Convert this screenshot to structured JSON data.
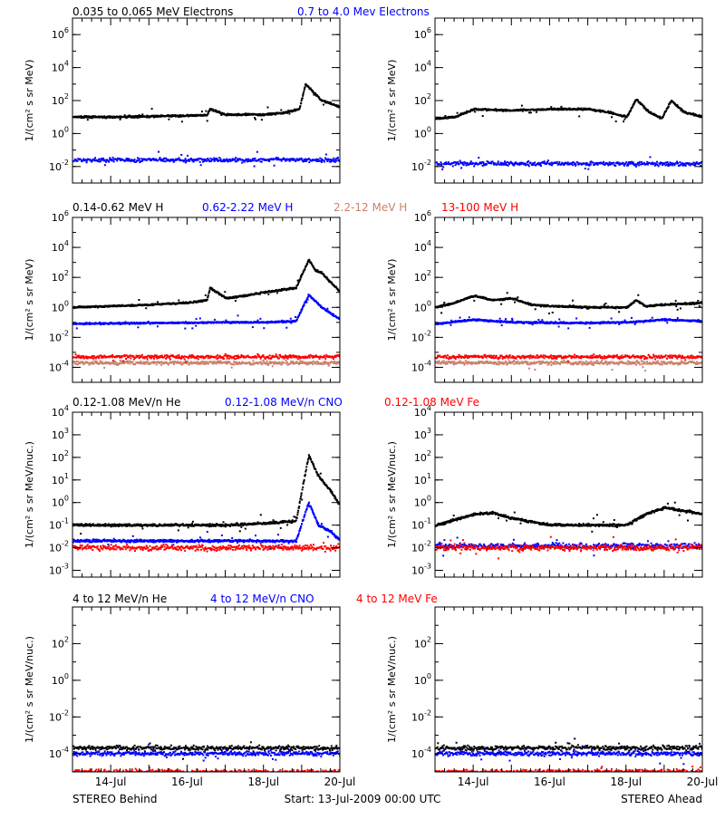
{
  "colors": {
    "black": "#000000",
    "blue": "#0000ff",
    "red": "#ff0000",
    "brown": "#c8826e"
  },
  "footer": {
    "left": "STEREO Behind",
    "center": "Start: 13-Jul-2009 00:00 UTC",
    "right": "STEREO Ahead"
  },
  "x_ticks": [
    "14-Jul",
    "16-Jul",
    "18-Jul",
    "20-Jul"
  ],
  "rows": [
    {
      "legend": [
        {
          "text": "0.035 to 0.065 MeV Electrons",
          "color": "#000000"
        },
        {
          "text": "0.7 to 4.0 Mev Electrons",
          "color": "#0000ff"
        }
      ],
      "ylabel": "1/(cm² s sr MeV)",
      "ylim": [
        0.001,
        10000000.0
      ],
      "yticks": [
        {
          "m": "10",
          "e": "6"
        },
        {
          "m": "10",
          "e": "4"
        },
        {
          "m": "10",
          "e": "2"
        },
        {
          "m": "10",
          "e": "0"
        },
        {
          "m": "10",
          "e": "-2"
        }
      ]
    },
    {
      "legend": [
        {
          "text": "0.14-0.62 MeV H",
          "color": "#000000"
        },
        {
          "text": "0.62-2.22 MeV H",
          "color": "#0000ff"
        },
        {
          "text": "2.2-12 MeV H",
          "color": "#c8826e"
        },
        {
          "text": "13-100 MeV H",
          "color": "#ff0000"
        }
      ],
      "ylabel": "1/(cm² s sr MeV)",
      "ylim": [
        1e-05,
        1000000.0
      ],
      "yticks": [
        {
          "m": "10",
          "e": "6"
        },
        {
          "m": "10",
          "e": "4"
        },
        {
          "m": "10",
          "e": "2"
        },
        {
          "m": "10",
          "e": "0"
        },
        {
          "m": "10",
          "e": "-2"
        },
        {
          "m": "10",
          "e": "-4"
        }
      ]
    },
    {
      "legend": [
        {
          "text": "0.12-1.08 MeV/n He",
          "color": "#000000"
        },
        {
          "text": "0.12-1.08 MeV/n CNO",
          "color": "#0000ff"
        },
        {
          "text": "0.12-1.08 MeV Fe",
          "color": "#ff0000"
        }
      ],
      "ylabel": "1/(cm² s sr MeV/nuc.)",
      "ylim": [
        0.0005,
        10000.0
      ],
      "yticks": [
        {
          "m": "10",
          "e": "4"
        },
        {
          "m": "10",
          "e": "3"
        },
        {
          "m": "10",
          "e": "2"
        },
        {
          "m": "10",
          "e": "1"
        },
        {
          "m": "10",
          "e": "0"
        },
        {
          "m": "10",
          "e": "-1"
        },
        {
          "m": "10",
          "e": "-2"
        },
        {
          "m": "10",
          "e": "-3"
        }
      ]
    },
    {
      "legend": [
        {
          "text": "4 to 12 MeV/n He",
          "color": "#000000"
        },
        {
          "text": "4 to 12 MeV/n CNO",
          "color": "#0000ff"
        },
        {
          "text": "4 to 12 MeV Fe",
          "color": "#ff0000"
        }
      ],
      "ylabel": "1/(cm² s sr MeV/nuc.)",
      "ylim": [
        1e-05,
        10000.0
      ],
      "yticks": [
        {
          "m": "10",
          "e": "2"
        },
        {
          "m": "10",
          "e": "0"
        },
        {
          "m": "10",
          "e": "-2"
        },
        {
          "m": "10",
          "e": "-4"
        }
      ]
    }
  ],
  "chart_data": [
    {
      "type": "scatter",
      "panel": "STEREO Behind - electrons",
      "yscale": "log",
      "xlim": [
        "13-Jul-2009 00:00",
        "20-Jul-2009 00:00"
      ],
      "ylim": [
        0.001,
        10000000.0
      ],
      "series": [
        {
          "name": "0.035 to 0.065 MeV Electrons",
          "color": "#000000",
          "x": [
            "13-Jul 00:00",
            "14-Jul 00:00",
            "15-Jul 00:00",
            "16-Jul 00:00",
            "16-Jul 12:00",
            "16-Jul 14:00",
            "17-Jul 00:00",
            "18-Jul 00:00",
            "18-Jul 12:00",
            "18-Jul 22:00",
            "19-Jul 02:00",
            "19-Jul 06:00",
            "19-Jul 12:00",
            "20-Jul 00:00"
          ],
          "y": [
            10,
            10,
            11,
            12,
            13,
            30,
            14,
            14,
            18,
            30,
            1000,
            400,
            100,
            40
          ]
        },
        {
          "name": "0.7 to 4.0 Mev Electrons",
          "color": "#0000ff",
          "x": [
            "13-Jul 00:00",
            "20-Jul 00:00"
          ],
          "y": [
            0.025,
            0.025
          ]
        }
      ]
    },
    {
      "type": "scatter",
      "panel": "STEREO Ahead - electrons",
      "yscale": "log",
      "xlim": [
        "13-Jul-2009 00:00",
        "20-Jul-2009 00:00"
      ],
      "ylim": [
        0.001,
        10000000.0
      ],
      "series": [
        {
          "name": "0.035 to 0.065 MeV Electrons",
          "color": "#000000",
          "x": [
            "13-Jul 00:00",
            "13-Jul 12:00",
            "14-Jul 00:00",
            "15-Jul 00:00",
            "16-Jul 00:00",
            "17-Jul 00:00",
            "17-Jul 12:00",
            "18-Jul 00:00",
            "18-Jul 06:00",
            "18-Jul 14:00",
            "18-Jul 22:00",
            "19-Jul 04:00",
            "19-Jul 12:00",
            "20-Jul 00:00"
          ],
          "y": [
            8,
            10,
            30,
            25,
            30,
            30,
            20,
            10,
            120,
            20,
            8,
            100,
            20,
            10
          ]
        },
        {
          "name": "0.7 to 4.0 Mev Electrons",
          "color": "#0000ff",
          "x": [
            "13-Jul 00:00",
            "20-Jul 00:00"
          ],
          "y": [
            0.015,
            0.015
          ]
        }
      ]
    },
    {
      "type": "scatter",
      "panel": "STEREO Behind - protons",
      "yscale": "log",
      "xlim": [
        "13-Jul-2009 00:00",
        "20-Jul-2009 00:00"
      ],
      "ylim": [
        1e-05,
        1000000.0
      ],
      "series": [
        {
          "name": "0.14-0.62 MeV H",
          "color": "#000000",
          "x": [
            "13-Jul 00:00",
            "14-Jul 00:00",
            "15-Jul 00:00",
            "16-Jul 00:00",
            "16-Jul 12:00",
            "16-Jul 14:00",
            "17-Jul 00:00",
            "17-Jul 12:00",
            "18-Jul 00:00",
            "18-Jul 12:00",
            "18-Jul 20:00",
            "19-Jul 04:00",
            "19-Jul 08:00",
            "19-Jul 12:00",
            "20-Jul 00:00"
          ],
          "y": [
            1,
            1.2,
            1.5,
            2,
            3,
            20,
            4,
            6,
            10,
            15,
            20,
            1500,
            300,
            200,
            10
          ]
        },
        {
          "name": "0.62-2.22 MeV H",
          "color": "#0000ff",
          "x": [
            "13-Jul 00:00",
            "15-Jul 00:00",
            "17-Jul 00:00",
            "18-Jul 00:00",
            "18-Jul 20:00",
            "19-Jul 04:00",
            "19-Jul 12:00",
            "20-Jul 00:00"
          ],
          "y": [
            0.08,
            0.09,
            0.1,
            0.1,
            0.12,
            7,
            1,
            0.15
          ]
        },
        {
          "name": "2.2-12 MeV H",
          "color": "#c8826e",
          "x": [
            "13-Jul 00:00",
            "20-Jul 00:00"
          ],
          "y": [
            0.0002,
            0.0002
          ]
        },
        {
          "name": "13-100 MeV H",
          "color": "#ff0000",
          "x": [
            "13-Jul 00:00",
            "20-Jul 00:00"
          ],
          "y": [
            0.0005,
            0.0005
          ]
        }
      ]
    },
    {
      "type": "scatter",
      "panel": "STEREO Ahead - protons",
      "yscale": "log",
      "xlim": [
        "13-Jul-2009 00:00",
        "20-Jul-2009 00:00"
      ],
      "ylim": [
        1e-05,
        1000000.0
      ],
      "series": [
        {
          "name": "0.14-0.62 MeV H",
          "color": "#000000",
          "x": [
            "13-Jul 00:00",
            "13-Jul 12:00",
            "14-Jul 00:00",
            "14-Jul 12:00",
            "15-Jul 00:00",
            "15-Jul 12:00",
            "16-Jul 00:00",
            "17-Jul 00:00",
            "18-Jul 00:00",
            "18-Jul 06:00",
            "18-Jul 12:00",
            "19-Jul 00:00",
            "20-Jul 00:00"
          ],
          "y": [
            1,
            2,
            6,
            3,
            4,
            1.5,
            1.2,
            1,
            1,
            3,
            1.2,
            1.5,
            2
          ]
        },
        {
          "name": "0.62-2.22 MeV H",
          "color": "#0000ff",
          "x": [
            "13-Jul 00:00",
            "14-Jul 00:00",
            "15-Jul 00:00",
            "17-Jul 00:00",
            "18-Jul 00:00",
            "19-Jul 00:00",
            "20-Jul 00:00"
          ],
          "y": [
            0.08,
            0.15,
            0.1,
            0.09,
            0.1,
            0.15,
            0.12
          ]
        },
        {
          "name": "2.2-12 MeV H",
          "color": "#c8826e",
          "x": [
            "13-Jul 00:00",
            "20-Jul 00:00"
          ],
          "y": [
            0.0002,
            0.0002
          ]
        },
        {
          "name": "13-100 MeV H",
          "color": "#ff0000",
          "x": [
            "13-Jul 00:00",
            "20-Jul 00:00"
          ],
          "y": [
            0.0005,
            0.0005
          ]
        }
      ]
    },
    {
      "type": "scatter",
      "panel": "STEREO Behind - heavy ions low energy",
      "yscale": "log",
      "xlim": [
        "13-Jul-2009 00:00",
        "20-Jul-2009 00:00"
      ],
      "ylim": [
        0.0005,
        10000.0
      ],
      "series": [
        {
          "name": "0.12-1.08 MeV/n He",
          "color": "#000000",
          "x": [
            "13-Jul 00:00",
            "15-Jul 00:00",
            "17-Jul 00:00",
            "18-Jul 00:00",
            "18-Jul 20:00",
            "19-Jul 04:00",
            "19-Jul 10:00",
            "19-Jul 18:00",
            "20-Jul 00:00"
          ],
          "y": [
            0.1,
            0.1,
            0.1,
            0.12,
            0.15,
            120,
            15,
            3,
            0.7
          ]
        },
        {
          "name": "0.12-1.08 MeV/n CNO",
          "color": "#0000ff",
          "x": [
            "13-Jul 00:00",
            "18-Jul 20:00",
            "19-Jul 04:00",
            "19-Jul 10:00",
            "19-Jul 18:00",
            "20-Jul 00:00"
          ],
          "y": [
            0.02,
            0.02,
            1,
            0.1,
            0.05,
            0.02
          ]
        },
        {
          "name": "0.12-1.08 MeV Fe",
          "color": "#ff0000",
          "x": [
            "13-Jul 00:00",
            "20-Jul 00:00"
          ],
          "y": [
            0.01,
            0.01
          ]
        }
      ]
    },
    {
      "type": "scatter",
      "panel": "STEREO Ahead - heavy ions low energy",
      "yscale": "log",
      "xlim": [
        "13-Jul-2009 00:00",
        "20-Jul-2009 00:00"
      ],
      "ylim": [
        0.0005,
        10000.0
      ],
      "series": [
        {
          "name": "0.12-1.08 MeV/n He",
          "color": "#000000",
          "x": [
            "13-Jul 00:00",
            "14-Jul 00:00",
            "14-Jul 12:00",
            "15-Jul 00:00",
            "16-Jul 00:00",
            "17-Jul 00:00",
            "18-Jul 00:00",
            "18-Jul 12:00",
            "19-Jul 00:00",
            "20-Jul 00:00"
          ],
          "y": [
            0.1,
            0.3,
            0.35,
            0.2,
            0.1,
            0.1,
            0.1,
            0.3,
            0.6,
            0.3
          ]
        },
        {
          "name": "0.12-1.08 MeV/n CNO",
          "color": "#0000ff",
          "x": [
            "13-Jul 00:00",
            "20-Jul 00:00"
          ],
          "y": [
            0.012,
            0.012
          ]
        },
        {
          "name": "0.12-1.08 MeV Fe",
          "color": "#ff0000",
          "x": [
            "13-Jul 00:00",
            "20-Jul 00:00"
          ],
          "y": [
            0.01,
            0.01
          ]
        }
      ]
    },
    {
      "type": "scatter",
      "panel": "STEREO Behind - heavy ions high energy",
      "yscale": "log",
      "xlim": [
        "13-Jul-2009 00:00",
        "20-Jul-2009 00:00"
      ],
      "ylim": [
        1e-05,
        10000.0
      ],
      "series": [
        {
          "name": "4 to 12 MeV/n He",
          "color": "#000000",
          "x": [
            "13-Jul 00:00",
            "20-Jul 00:00"
          ],
          "y": [
            0.0002,
            0.0002
          ]
        },
        {
          "name": "4 to 12 MeV/n CNO",
          "color": "#0000ff",
          "x": [
            "13-Jul 00:00",
            "20-Jul 00:00"
          ],
          "y": [
            0.0001,
            0.0001
          ]
        },
        {
          "name": "4 to 12 MeV Fe",
          "color": "#ff0000",
          "x": [
            "13-Jul 00:00",
            "20-Jul 00:00"
          ],
          "y": [
            1e-05,
            1e-05
          ]
        }
      ]
    },
    {
      "type": "scatter",
      "panel": "STEREO Ahead - heavy ions high energy",
      "yscale": "log",
      "xlim": [
        "13-Jul-2009 00:00",
        "20-Jul-2009 00:00"
      ],
      "ylim": [
        1e-05,
        10000.0
      ],
      "series": [
        {
          "name": "4 to 12 MeV/n He",
          "color": "#000000",
          "x": [
            "13-Jul 00:00",
            "20-Jul 00:00"
          ],
          "y": [
            0.0002,
            0.0002
          ]
        },
        {
          "name": "4 to 12 MeV/n CNO",
          "color": "#0000ff",
          "x": [
            "13-Jul 00:00",
            "20-Jul 00:00"
          ],
          "y": [
            0.0001,
            0.0001
          ]
        },
        {
          "name": "4 to 12 MeV Fe",
          "color": "#ff0000",
          "x": [
            "13-Jul 00:00",
            "20-Jul 00:00"
          ],
          "y": [
            1e-05,
            1e-05
          ]
        }
      ]
    }
  ]
}
